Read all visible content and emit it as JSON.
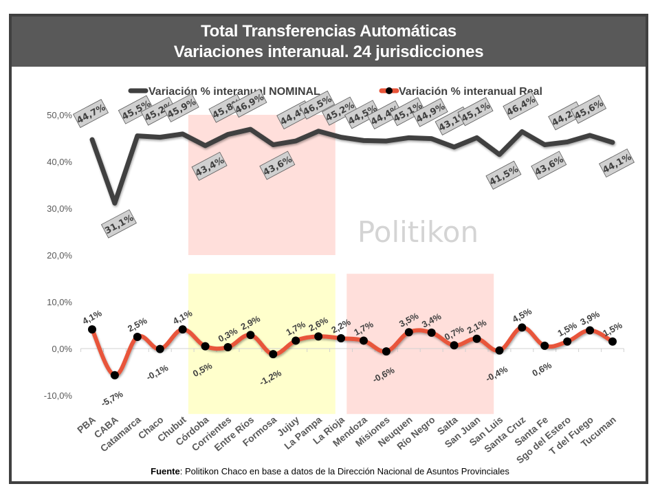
{
  "title": {
    "line1": "Total Transferencias Automáticas",
    "line2": "Variaciones interanual. 24 jurisdicciones"
  },
  "source": {
    "label": "Fuente",
    "text": ": Politikon Chaco en base a datos de la Dirección Nacional de Asuntos Provinciales"
  },
  "watermark": "Politikon",
  "colors": {
    "nominal": "#404040",
    "real": "#e8553a",
    "marker": "#000000",
    "highlight_pink": "#ffdfdb",
    "highlight_yellow": "#ffffcc",
    "title_bg": "#595959",
    "label_box": "#d0d0d0"
  },
  "chart_data": {
    "type": "line",
    "title": "Total Transferencias Automáticas - Variaciones interanual. 24 jurisdicciones",
    "xlabel": "",
    "ylabel": "",
    "ylim": [
      -10,
      50
    ],
    "yticks": [
      "-10,0%",
      "0,0%",
      "10,0%",
      "20,0%",
      "30,0%",
      "40,0%",
      "50,0%"
    ],
    "ytick_values": [
      -10,
      0,
      10,
      20,
      30,
      40,
      50
    ],
    "grid": false,
    "legend_position": "top",
    "categories": [
      "PBA",
      "CABA",
      "Catamarca",
      "Chaco",
      "Chubut",
      "Córdoba",
      "Corrientes",
      "Entre Ríos",
      "Formosa",
      "Jujuy",
      "La Pampa",
      "La Rioja",
      "Mendoza",
      "Misiones",
      "Neuquen",
      "Río Negro",
      "Salta",
      "San Juan",
      "San Luis",
      "Santa Cruz",
      "Santa Fe",
      "Sgo del Estero",
      "T del Fuego",
      "Tucuman"
    ],
    "series": [
      {
        "name": "Variación % interanual NOMINAL",
        "values": [
          44.7,
          31.1,
          45.5,
          45.2,
          45.9,
          43.4,
          45.8,
          46.9,
          43.6,
          44.4,
          46.5,
          45.2,
          44.5,
          44.4,
          45.1,
          44.9,
          43.1,
          45.1,
          41.5,
          46.4,
          43.6,
          44.2,
          45.6,
          44.1
        ],
        "labels": [
          "44,7%",
          "31,1%",
          "45,5%",
          "45,2%",
          "45,9%",
          "43,4%",
          "45,8%",
          "46,9%",
          "43,6%",
          "44,4%",
          "46,5%",
          "45,2%",
          "44,5%",
          "44,4%",
          "45,1%",
          "44,9%",
          "43,1%",
          "45,1%",
          "41,5%",
          "46,4%",
          "43,6%",
          "44,2%",
          "45,6%",
          "44,1%"
        ],
        "label_pos": [
          "above",
          "below",
          "above",
          "above",
          "above",
          "below",
          "above",
          "above",
          "below",
          "above",
          "above",
          "above",
          "above",
          "above",
          "above",
          "above",
          "above",
          "above",
          "below",
          "above",
          "below",
          "above",
          "above",
          "below"
        ]
      },
      {
        "name": "Variación % interanual Real",
        "values": [
          4.1,
          -5.7,
          2.5,
          -0.1,
          4.1,
          0.5,
          0.3,
          2.9,
          -1.2,
          1.7,
          2.6,
          2.2,
          1.7,
          -0.6,
          3.5,
          3.4,
          0.7,
          2.1,
          -0.4,
          4.5,
          0.6,
          1.5,
          3.9,
          1.5
        ],
        "labels": [
          "4,1%",
          "-5,7%",
          "2,5%",
          "-0,1%",
          "4,1%",
          "0,5%",
          "0,3%",
          "2,9%",
          "-1,2%",
          "1,7%",
          "2,6%",
          "2,2%",
          "1,7%",
          "-0,6%",
          "3,5%",
          "3,4%",
          "0,7%",
          "2,1%",
          "-0,4%",
          "4,5%",
          "0,6%",
          "1,5%",
          "3,9%",
          "1,5%"
        ],
        "label_pos": [
          "above",
          "below",
          "above",
          "below",
          "above",
          "below",
          "above",
          "above",
          "below",
          "above",
          "above",
          "above",
          "above",
          "below",
          "above",
          "above",
          "above",
          "above",
          "below",
          "above",
          "below",
          "above",
          "above",
          "above"
        ]
      }
    ],
    "highlight_regions": [
      {
        "color": "pink",
        "from_category": "Córdoba",
        "to_category": "La Pampa",
        "y_range": [
          20,
          50
        ]
      },
      {
        "color": "yellow",
        "from_category": "Córdoba",
        "to_category": "La Pampa",
        "y_range": [
          -14,
          16
        ]
      },
      {
        "color": "pink",
        "from_category": "Mendoza",
        "to_category": "San Juan",
        "y_range": [
          -14,
          16
        ]
      }
    ]
  }
}
